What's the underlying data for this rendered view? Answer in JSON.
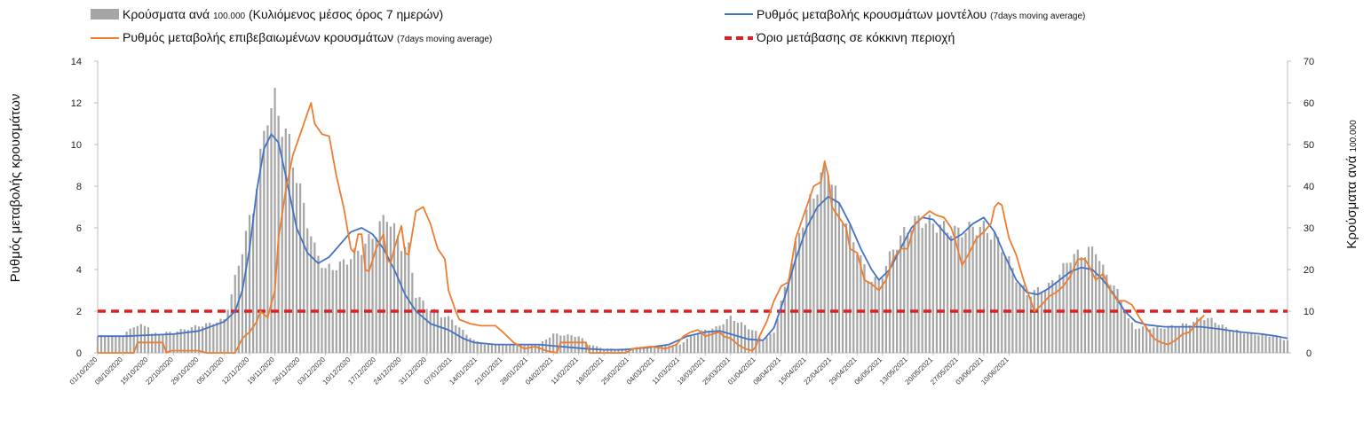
{
  "chart_data": {
    "type": "bar+line",
    "legend": {
      "bars_main": "Κρούσματα ανά",
      "bars_small": "100.000",
      "bars_rest": "(Κυλιόμενος μέσος όρος 7 ημερών)",
      "model_main": "Ρυθμός μεταβολής κρουσμάτων μοντέλου",
      "model_small": "(7days moving average)",
      "confirmed_main": "Ρυθμός μεταβολής επιβεβαιωμένων κρουσμάτων",
      "confirmed_small": "(7days moving average)",
      "threshold": "Όριο μετάβασης σε κόκκινη περιοχή"
    },
    "ylabel_left": "Ρυθμός μεταβολής κρουσμάτων",
    "ylabel_right_main": "Κρούσματα ανά",
    "ylabel_right_small": "100.000",
    "left_axis": {
      "min": 0,
      "max": 14,
      "ticks": [
        0,
        2,
        4,
        6,
        8,
        10,
        12,
        14
      ]
    },
    "right_axis": {
      "min": 0,
      "max": 70,
      "ticks": [
        0,
        10,
        20,
        30,
        40,
        50,
        60,
        70
      ]
    },
    "x_tick_labels": [
      "01/10/2020",
      "08/10/2020",
      "15/10/2020",
      "22/10/2020",
      "29/10/2020",
      "05/11/2020",
      "12/11/2020",
      "19/11/2020",
      "26/11/2020",
      "03/12/2020",
      "10/12/2020",
      "17/12/2020",
      "24/12/2020",
      "31/12/2020",
      "07/01/2021",
      "14/01/2021",
      "21/01/2021",
      "28/01/2021",
      "04/02/2021",
      "11/02/2021",
      "18/02/2021",
      "25/02/2021",
      "04/03/2021",
      "11/03/2021",
      "18/03/2021",
      "25/03/2021",
      "01/04/2021",
      "08/04/2021",
      "15/04/2021",
      "22/04/2021",
      "29/04/2021",
      "06/05/2021",
      "13/05/2021",
      "20/05/2021",
      "27/05/2021",
      "03/06/2021",
      "10/06/2021"
    ],
    "threshold_value": 2,
    "colors": {
      "bars": "#a6a6a6",
      "model": "#4472c4",
      "confirmed": "#ed7d31",
      "threshold": "#e02020"
    },
    "bars_key": [
      [
        0,
        4
      ],
      [
        7,
        4
      ],
      [
        10,
        6.5
      ],
      [
        14,
        6.5
      ],
      [
        15,
        4.5
      ],
      [
        21,
        5
      ],
      [
        28,
        6.5
      ],
      [
        31,
        7
      ],
      [
        35,
        8
      ],
      [
        37,
        14
      ],
      [
        40,
        25
      ],
      [
        43,
        35
      ],
      [
        47,
        58
      ],
      [
        49,
        60
      ],
      [
        51,
        55
      ],
      [
        53,
        50
      ],
      [
        57,
        35
      ],
      [
        60,
        25
      ],
      [
        63,
        20
      ],
      [
        67,
        21
      ],
      [
        70,
        23
      ],
      [
        73,
        25
      ],
      [
        76,
        28
      ],
      [
        80,
        33
      ],
      [
        84,
        26
      ],
      [
        86,
        25
      ],
      [
        88,
        14
      ],
      [
        91,
        11
      ],
      [
        95,
        9
      ],
      [
        98,
        8
      ],
      [
        100,
        6
      ],
      [
        104,
        3
      ],
      [
        107,
        2
      ],
      [
        111,
        2
      ],
      [
        115,
        2
      ],
      [
        122,
        2
      ],
      [
        126,
        4.5
      ],
      [
        133,
        4
      ],
      [
        136,
        2
      ],
      [
        140,
        1
      ],
      [
        147,
        1
      ],
      [
        150,
        1.5
      ],
      [
        154,
        1.5
      ],
      [
        161,
        2
      ],
      [
        164,
        4
      ],
      [
        168,
        5.5
      ],
      [
        171,
        6
      ],
      [
        175,
        8.5
      ],
      [
        178,
        7
      ],
      [
        182,
        5
      ],
      [
        184,
        3
      ],
      [
        187,
        5
      ],
      [
        189,
        12
      ],
      [
        192,
        22
      ],
      [
        195,
        32
      ],
      [
        199,
        40
      ],
      [
        202,
        45
      ],
      [
        204,
        38
      ],
      [
        206,
        33
      ],
      [
        210,
        25
      ],
      [
        213,
        18
      ],
      [
        216,
        17
      ],
      [
        220,
        25
      ],
      [
        224,
        30
      ],
      [
        227,
        32
      ],
      [
        231,
        31
      ],
      [
        234,
        30
      ],
      [
        238,
        29
      ],
      [
        242,
        30
      ],
      [
        245,
        30
      ],
      [
        248,
        28
      ],
      [
        251,
        24
      ],
      [
        254,
        18
      ],
      [
        257,
        14
      ],
      [
        260,
        15
      ],
      [
        263,
        16
      ],
      [
        266,
        19
      ],
      [
        269,
        23
      ],
      [
        273,
        24
      ],
      [
        276,
        25
      ],
      [
        278,
        20
      ],
      [
        281,
        16
      ],
      [
        283,
        13
      ],
      [
        285,
        8
      ],
      [
        287,
        6
      ],
      [
        290,
        6
      ],
      [
        294,
        6
      ],
      [
        298,
        6.5
      ],
      [
        302,
        7
      ],
      [
        305,
        8.5
      ],
      [
        308,
        8
      ],
      [
        312,
        6
      ],
      [
        316,
        5
      ],
      [
        320,
        4.5
      ],
      [
        325,
        4
      ],
      [
        329,
        3
      ]
    ],
    "model_key": [
      [
        0,
        0.8
      ],
      [
        8,
        0.8
      ],
      [
        14,
        0.85
      ],
      [
        21,
        0.9
      ],
      [
        28,
        1.05
      ],
      [
        35,
        1.5
      ],
      [
        38,
        2.0
      ],
      [
        40,
        3.0
      ],
      [
        42,
        5.0
      ],
      [
        44,
        7.8
      ],
      [
        46,
        9.8
      ],
      [
        48,
        10.5
      ],
      [
        50,
        10.1
      ],
      [
        52,
        8.5
      ],
      [
        55,
        6.0
      ],
      [
        58,
        4.8
      ],
      [
        61,
        4.3
      ],
      [
        64,
        4.6
      ],
      [
        67,
        5.2
      ],
      [
        70,
        5.8
      ],
      [
        73,
        6.0
      ],
      [
        76,
        5.7
      ],
      [
        79,
        5.0
      ],
      [
        82,
        4.0
      ],
      [
        85,
        2.8
      ],
      [
        88,
        2.0
      ],
      [
        92,
        1.4
      ],
      [
        97,
        1.1
      ],
      [
        101,
        0.7
      ],
      [
        104,
        0.5
      ],
      [
        110,
        0.4
      ],
      [
        116,
        0.4
      ],
      [
        122,
        0.4
      ],
      [
        128,
        0.3
      ],
      [
        135,
        0.2
      ],
      [
        140,
        0.15
      ],
      [
        145,
        0.15
      ],
      [
        152,
        0.25
      ],
      [
        158,
        0.4
      ],
      [
        163,
        0.8
      ],
      [
        168,
        1.0
      ],
      [
        172,
        1.05
      ],
      [
        176,
        0.85
      ],
      [
        180,
        0.65
      ],
      [
        184,
        0.6
      ],
      [
        187,
        1.2
      ],
      [
        190,
        2.7
      ],
      [
        193,
        4.5
      ],
      [
        196,
        6.0
      ],
      [
        199,
        7.0
      ],
      [
        202,
        7.5
      ],
      [
        205,
        7.2
      ],
      [
        208,
        6.2
      ],
      [
        211,
        5.0
      ],
      [
        214,
        4.0
      ],
      [
        216,
        3.5
      ],
      [
        219,
        4.0
      ],
      [
        222,
        5.0
      ],
      [
        225,
        6.0
      ],
      [
        228,
        6.5
      ],
      [
        231,
        6.4
      ],
      [
        234,
        5.8
      ],
      [
        236,
        5.4
      ],
      [
        239,
        5.7
      ],
      [
        242,
        6.2
      ],
      [
        245,
        6.5
      ],
      [
        248,
        5.8
      ],
      [
        251,
        4.6
      ],
      [
        254,
        3.5
      ],
      [
        257,
        2.9
      ],
      [
        260,
        2.8
      ],
      [
        263,
        3.1
      ],
      [
        266,
        3.5
      ],
      [
        269,
        3.9
      ],
      [
        272,
        4.1
      ],
      [
        275,
        4.0
      ],
      [
        278,
        3.5
      ],
      [
        281,
        2.8
      ],
      [
        284,
        2.0
      ],
      [
        287,
        1.5
      ],
      [
        290,
        1.35
      ],
      [
        295,
        1.25
      ],
      [
        300,
        1.25
      ],
      [
        305,
        1.25
      ],
      [
        310,
        1.15
      ],
      [
        316,
        1.0
      ],
      [
        322,
        0.9
      ],
      [
        326,
        0.8
      ],
      [
        329,
        0.7
      ]
    ],
    "confirmed_key": [
      [
        0,
        0
      ],
      [
        10,
        0
      ],
      [
        11,
        0.5
      ],
      [
        18,
        0.5
      ],
      [
        19,
        0
      ],
      [
        20,
        0.1
      ],
      [
        28,
        0.1
      ],
      [
        30,
        0
      ],
      [
        38,
        0
      ],
      [
        40,
        0.7
      ],
      [
        42,
        1.0
      ],
      [
        44,
        1.5
      ],
      [
        45,
        2.0
      ],
      [
        47,
        1.7
      ],
      [
        49,
        3.0
      ],
      [
        50,
        5.5
      ],
      [
        52,
        7.8
      ],
      [
        54,
        9.5
      ],
      [
        56,
        10.5
      ],
      [
        58,
        11.5
      ],
      [
        59,
        12.0
      ],
      [
        60,
        11.0
      ],
      [
        62,
        10.5
      ],
      [
        64,
        10.4
      ],
      [
        66,
        8.5
      ],
      [
        68,
        7.0
      ],
      [
        70,
        5.0
      ],
      [
        71,
        4.8
      ],
      [
        72,
        5.7
      ],
      [
        73,
        5.7
      ],
      [
        74,
        4.0
      ],
      [
        75,
        3.9
      ],
      [
        77,
        5.0
      ],
      [
        79,
        5.7
      ],
      [
        80,
        4.5
      ],
      [
        81,
        4.3
      ],
      [
        82,
        5.0
      ],
      [
        84,
        6.1
      ],
      [
        85,
        4.8
      ],
      [
        86,
        4.7
      ],
      [
        88,
        6.8
      ],
      [
        90,
        7.0
      ],
      [
        92,
        6.2
      ],
      [
        94,
        5.0
      ],
      [
        96,
        4.5
      ],
      [
        97,
        3.0
      ],
      [
        99,
        2.0
      ],
      [
        100,
        1.6
      ],
      [
        103,
        1.4
      ],
      [
        106,
        1.3
      ],
      [
        110,
        1.3
      ],
      [
        112,
        1.0
      ],
      [
        115,
        0.5
      ],
      [
        118,
        0.2
      ],
      [
        121,
        0.3
      ],
      [
        124,
        0.1
      ],
      [
        127,
        0
      ],
      [
        128,
        0.5
      ],
      [
        135,
        0.5
      ],
      [
        136,
        0
      ],
      [
        142,
        0
      ],
      [
        146,
        0
      ],
      [
        148,
        0.2
      ],
      [
        153,
        0.3
      ],
      [
        157,
        0.2
      ],
      [
        160,
        0.4
      ],
      [
        162,
        0.8
      ],
      [
        164,
        1.0
      ],
      [
        166,
        1.1
      ],
      [
        168,
        0.8
      ],
      [
        170,
        0.9
      ],
      [
        172,
        1.0
      ],
      [
        173,
        0.8
      ],
      [
        175,
        0.7
      ],
      [
        177,
        0.4
      ],
      [
        179,
        0.2
      ],
      [
        181,
        0.1
      ],
      [
        182,
        0.3
      ],
      [
        183,
        0.8
      ],
      [
        185,
        1.5
      ],
      [
        187,
        2.5
      ],
      [
        189,
        3.2
      ],
      [
        191,
        3.4
      ],
      [
        193,
        5.5
      ],
      [
        195,
        6.5
      ],
      [
        196,
        7.0
      ],
      [
        198,
        8.0
      ],
      [
        200,
        8.2
      ],
      [
        201,
        9.2
      ],
      [
        202,
        8.5
      ],
      [
        203,
        7.0
      ],
      [
        205,
        6.5
      ],
      [
        207,
        6.0
      ],
      [
        208,
        5.0
      ],
      [
        210,
        4.8
      ],
      [
        212,
        3.5
      ],
      [
        214,
        3.3
      ],
      [
        216,
        3.0
      ],
      [
        218,
        3.5
      ],
      [
        220,
        4.5
      ],
      [
        222,
        5.0
      ],
      [
        224,
        5.0
      ],
      [
        226,
        6.2
      ],
      [
        228,
        6.5
      ],
      [
        230,
        6.8
      ],
      [
        232,
        6.6
      ],
      [
        234,
        6.5
      ],
      [
        236,
        6.0
      ],
      [
        237,
        5.5
      ],
      [
        239,
        4.2
      ],
      [
        241,
        4.8
      ],
      [
        243,
        5.5
      ],
      [
        245,
        5.8
      ],
      [
        247,
        6.2
      ],
      [
        248,
        7.0
      ],
      [
        249,
        7.2
      ],
      [
        250,
        7.1
      ],
      [
        252,
        5.5
      ],
      [
        254,
        4.7
      ],
      [
        256,
        3.5
      ],
      [
        258,
        2.5
      ],
      [
        259,
        2.0
      ],
      [
        261,
        2.3
      ],
      [
        263,
        2.7
      ],
      [
        265,
        2.9
      ],
      [
        267,
        3.2
      ],
      [
        269,
        3.7
      ],
      [
        271,
        4.5
      ],
      [
        273,
        4.5
      ],
      [
        274,
        4.2
      ],
      [
        276,
        3.5
      ],
      [
        278,
        3.8
      ],
      [
        280,
        3.0
      ],
      [
        282,
        2.5
      ],
      [
        284,
        2.5
      ],
      [
        286,
        2.3
      ],
      [
        288,
        1.7
      ],
      [
        290,
        1.2
      ],
      [
        292,
        0.7
      ],
      [
        294,
        0.5
      ],
      [
        296,
        0.4
      ],
      [
        298,
        0.6
      ],
      [
        300,
        0.9
      ],
      [
        302,
        1.0
      ],
      [
        304,
        1.5
      ],
      [
        306,
        1.8
      ]
    ]
  }
}
